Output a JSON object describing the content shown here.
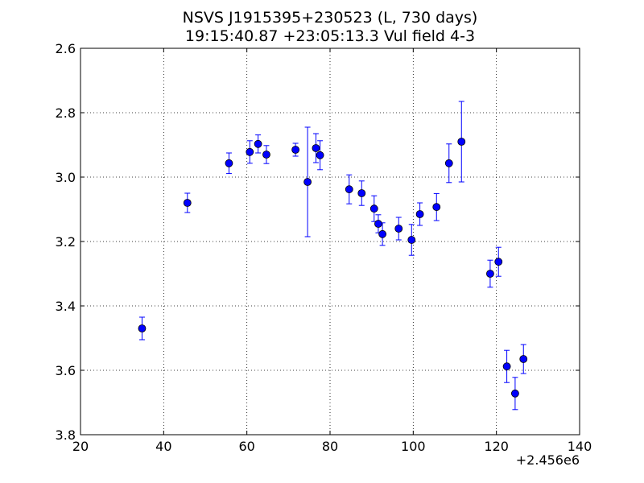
{
  "figure": {
    "title_line1": "NSVS J1915395+230523 (L, 730 days)",
    "title_line2": "19:15:40.87 +23:05:13.3 Vul field 4-3"
  },
  "chart_data": {
    "type": "scatter",
    "title": "NSVS J1915395+230523 (L, 730 days)",
    "subtitle": "19:15:40.87 +23:05:13.3 Vul field 4-3",
    "xlabel": "",
    "ylabel": "",
    "x_offset_label": "+2.456e6",
    "xlim": [
      20,
      140
    ],
    "ylim": [
      2.6,
      3.8
    ],
    "y_inverted": true,
    "grid": true,
    "legend": "none",
    "marker_color": "#0000ff",
    "x_ticks": [
      "20",
      "40",
      "60",
      "80",
      "100",
      "120",
      "140"
    ],
    "y_ticks": [
      "2.6",
      "2.8",
      "3.0",
      "3.2",
      "3.4",
      "3.6",
      "3.8"
    ],
    "x_tick_values": [
      20,
      40,
      60,
      80,
      100,
      120,
      140
    ],
    "y_tick_values": [
      2.6,
      2.8,
      3.0,
      3.2,
      3.4,
      3.6,
      3.8
    ],
    "points": [
      {
        "x": 34.8,
        "y": 3.47,
        "err": 0.035
      },
      {
        "x": 45.7,
        "y": 3.08,
        "err": 0.03
      },
      {
        "x": 55.7,
        "y": 2.957,
        "err": 0.032
      },
      {
        "x": 60.7,
        "y": 2.922,
        "err": 0.035
      },
      {
        "x": 62.7,
        "y": 2.897,
        "err": 0.028
      },
      {
        "x": 64.7,
        "y": 2.93,
        "err": 0.028
      },
      {
        "x": 71.7,
        "y": 2.915,
        "err": 0.02
      },
      {
        "x": 74.6,
        "y": 3.015,
        "err": 0.17
      },
      {
        "x": 76.6,
        "y": 2.91,
        "err": 0.045
      },
      {
        "x": 77.6,
        "y": 2.932,
        "err": 0.045
      },
      {
        "x": 84.6,
        "y": 3.038,
        "err": 0.045
      },
      {
        "x": 87.6,
        "y": 3.05,
        "err": 0.038
      },
      {
        "x": 90.6,
        "y": 3.098,
        "err": 0.04
      },
      {
        "x": 91.6,
        "y": 3.145,
        "err": 0.028
      },
      {
        "x": 92.6,
        "y": 3.177,
        "err": 0.035
      },
      {
        "x": 96.5,
        "y": 3.16,
        "err": 0.035
      },
      {
        "x": 99.6,
        "y": 3.195,
        "err": 0.048
      },
      {
        "x": 101.6,
        "y": 3.115,
        "err": 0.035
      },
      {
        "x": 105.6,
        "y": 3.093,
        "err": 0.042
      },
      {
        "x": 108.6,
        "y": 2.957,
        "err": 0.06
      },
      {
        "x": 111.6,
        "y": 2.89,
        "err": 0.125
      },
      {
        "x": 118.5,
        "y": 3.3,
        "err": 0.042
      },
      {
        "x": 120.5,
        "y": 3.263,
        "err": 0.045
      },
      {
        "x": 122.5,
        "y": 3.588,
        "err": 0.05
      },
      {
        "x": 124.5,
        "y": 3.672,
        "err": 0.05
      },
      {
        "x": 126.5,
        "y": 3.565,
        "err": 0.045
      }
    ]
  }
}
